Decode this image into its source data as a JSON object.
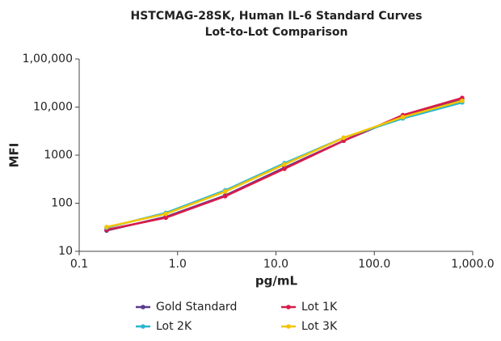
{
  "chart_data": {
    "type": "line",
    "title": "HSTCMAG-28SK, Human IL-6 Standard Curves",
    "subtitle": "Lot-to-Lot Comparison",
    "x_label": "pg/mL",
    "y_label": "MFI",
    "x": [
      0.19,
      0.76,
      3.05,
      12.2,
      48.8,
      195,
      781
    ],
    "xscale": "log",
    "yscale": "log",
    "xlim": [
      0.1,
      1000
    ],
    "ylim": [
      10,
      100000
    ],
    "xticks": [
      0.1,
      {
        "value": 1,
        "label": "1.0"
      },
      {
        "value": 10,
        "label": "10.0"
      },
      {
        "value": 100,
        "label": "100.0"
      },
      {
        "value": 1000,
        "label": "1,000.0"
      }
    ],
    "yticks": [
      10,
      100,
      1000,
      {
        "value": 10000,
        "label": "10,000"
      },
      {
        "value": 100000,
        "label": "1,00,000"
      }
    ],
    "grid": false,
    "legend": "bottom",
    "series": [
      {
        "name": "Gold Standard",
        "color": "#5b3a8c",
        "values": [
          27,
          52,
          145,
          550,
          2000,
          6500,
          14000
        ]
      },
      {
        "name": "Lot 1K",
        "color": "#d81b4a",
        "values": [
          28,
          50,
          140,
          520,
          2000,
          6800,
          15500
        ]
      },
      {
        "name": "Lot 2K",
        "color": "#29b6d1",
        "values": [
          31,
          63,
          185,
          680,
          2300,
          5800,
          12500
        ]
      },
      {
        "name": "Lot 3K",
        "color": "#f5c400",
        "values": [
          32,
          60,
          175,
          640,
          2300,
          6200,
          13500
        ]
      }
    ]
  }
}
